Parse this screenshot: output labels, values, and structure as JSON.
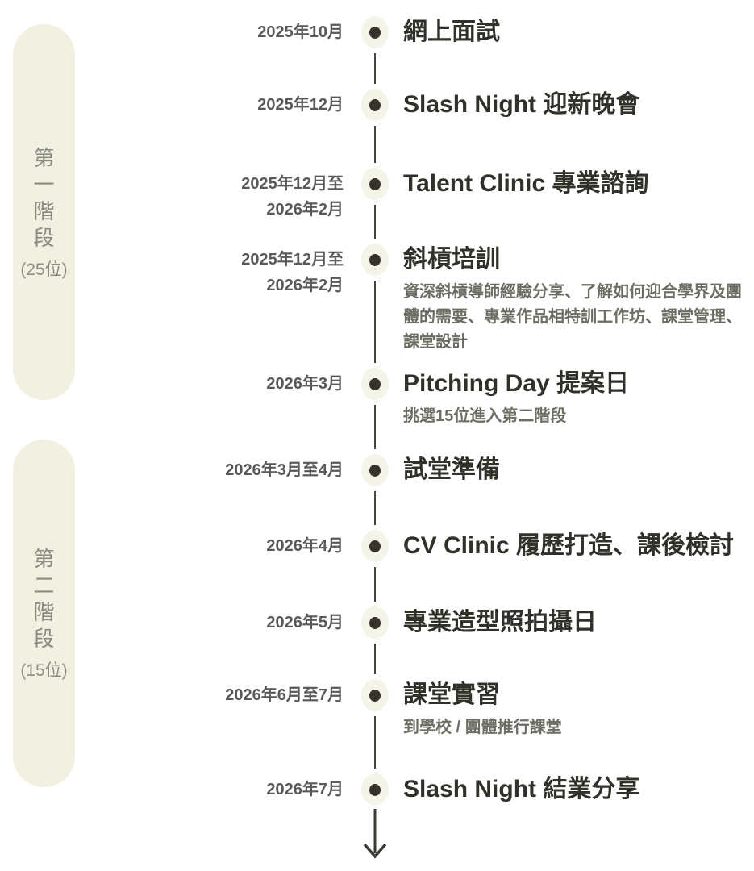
{
  "colors": {
    "background": "#ffffff",
    "pill_background": "#f2f1e1",
    "pill_text": "#8a8b83",
    "date_text": "#595959",
    "title_text": "#31312a",
    "description_text": "#6d6d64",
    "node_fill": "#f5f4e8",
    "node_dot": "#34342c",
    "connector_line": "#45453d"
  },
  "phases": [
    {
      "label": "第一階段",
      "chars": [
        "第",
        "一",
        "階",
        "段"
      ],
      "count": "(25位)"
    },
    {
      "label": "第二階段",
      "chars": [
        "第",
        "二",
        "階",
        "段"
      ],
      "count": "(15位)"
    }
  ],
  "timeline": {
    "items": [
      {
        "date_lines": [
          "2025年10月"
        ],
        "title": "網上面試"
      },
      {
        "date_lines": [
          "2025年12月"
        ],
        "title": "Slash Night 迎新晚會"
      },
      {
        "date_lines": [
          "2025年12月至",
          "2026年2月"
        ],
        "title": "Talent Clinic 專業諮詢"
      },
      {
        "date_lines": [
          "2025年12月至",
          "2026年2月"
        ],
        "title": "斜槓培訓",
        "description": "資深斜槓導師經驗分享、了解如何迎合學界及團體的需要、專業作品相特訓工作坊、課堂管理、課堂設計"
      },
      {
        "date_lines": [
          "2026年3月"
        ],
        "title": "Pitching Day 提案日",
        "description": "挑選15位進入第二階段"
      },
      {
        "date_lines": [
          "2026年3月至4月"
        ],
        "title": "試堂準備"
      },
      {
        "date_lines": [
          "2026年4月"
        ],
        "title": "CV Clinic 履歷打造、課後檢討"
      },
      {
        "date_lines": [
          "2026年5月"
        ],
        "title": "專業造型照拍攝日"
      },
      {
        "date_lines": [
          "2026年6月至7月"
        ],
        "title": "課堂實習",
        "description": "到學校 / 團體推行課堂"
      },
      {
        "date_lines": [
          "2026年7月"
        ],
        "title": "Slash Night 結業分享"
      }
    ]
  }
}
